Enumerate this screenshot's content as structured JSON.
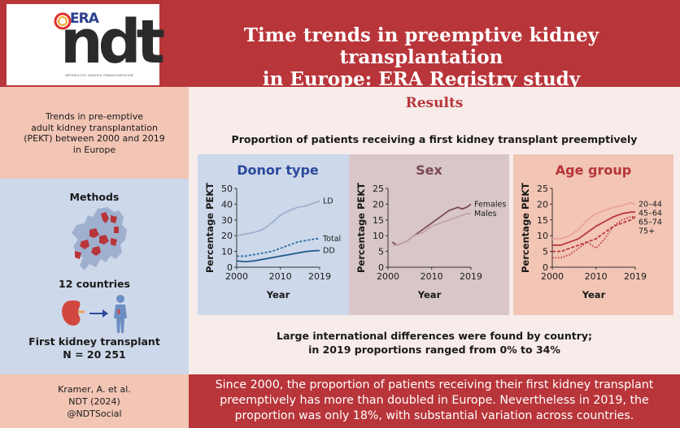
{
  "header": {
    "logo_era": "ERA",
    "logo_ndt": "ndt",
    "logo_sub": "NEPHROLOGY DIALYSIS TRANSPLANTATION",
    "title_line1": "Time trends in preemptive kidney transplantation",
    "title_line2": "in Europe: ERA Registry study"
  },
  "left": {
    "trends_lines": [
      "Trends in pre-emptive",
      "adult kidney transplantation",
      "(PEKT) between 2000 and 2019",
      "in Europe"
    ],
    "methods": "Methods",
    "countries": "12 countries",
    "first_transplant": "First kidney transplant",
    "n": "N = 20 251",
    "map_icon": "europe-map-icon",
    "kidney_icon": "kidney-icon",
    "arrow_icon": "arrow-right-icon",
    "person_icon": "person-icon"
  },
  "results": {
    "title": "Results",
    "subtitle": "Proportion of patients receiving a first kidney transplant preemptively",
    "finding_line1": "Large international differences were found by country;",
    "finding_line2": "in 2019 proportions ranged from 0% to 34%"
  },
  "footer": {
    "cite_author": "Kramer, A. et al.",
    "cite_journal": "NDT (2024)",
    "cite_social": "@NDTSocial",
    "summary_lines": [
      "Since 2000, the proportion of patients receiving their first kidney transplant",
      "preemptively has more than doubled in Europe. Nevertheless in 2019, the",
      "proportion was only 18%, with substantial variation across countries."
    ]
  },
  "colors": {
    "brand_red": "#b8353a",
    "panel_blue": "#cdd8ea",
    "panel_mauve": "#d8c6c8",
    "panel_peach": "#f2c5b5"
  },
  "chart_data": [
    {
      "type": "line",
      "title": "Donor type",
      "title_color": "#2a4a9a",
      "xlabel": "Year",
      "ylabel": "Percentage PEKT",
      "xlim": [
        2000,
        2019
      ],
      "ylim": [
        0,
        50
      ],
      "xticks": [
        2000,
        2010,
        2019
      ],
      "yticks": [
        0,
        10,
        20,
        30,
        40,
        50
      ],
      "series": [
        {
          "name": "LD",
          "color": "#9fb0cf",
          "dash": "",
          "x": [
            2000,
            2002,
            2004,
            2006,
            2008,
            2010,
            2012,
            2014,
            2016,
            2018,
            2019
          ],
          "y": [
            20,
            21,
            22,
            24,
            28,
            33,
            36,
            38,
            39,
            41,
            42
          ]
        },
        {
          "name": "Total",
          "color": "#2f6ea8",
          "dash": "3,2",
          "x": [
            2000,
            2002,
            2004,
            2006,
            2008,
            2010,
            2012,
            2014,
            2016,
            2018,
            2019
          ],
          "y": [
            7,
            7,
            8,
            9,
            10,
            12,
            14,
            16,
            17,
            18,
            18
          ]
        },
        {
          "name": "DD",
          "color": "#1e5a8a",
          "dash": "",
          "x": [
            2000,
            2002,
            2004,
            2006,
            2008,
            2010,
            2012,
            2014,
            2016,
            2018,
            2019
          ],
          "y": [
            4,
            3.5,
            4,
            5,
            6,
            7,
            8,
            9,
            10,
            10.5,
            10.5
          ]
        }
      ]
    },
    {
      "type": "line",
      "title": "Sex",
      "title_color": "#7a4a55",
      "xlabel": "Year",
      "ylabel": "Percentage PEKT",
      "xlim": [
        2000,
        2019
      ],
      "ylim": [
        0,
        25
      ],
      "xticks": [
        2000,
        2010,
        2019
      ],
      "yticks": [
        0,
        5,
        10,
        15,
        20,
        25
      ],
      "series": [
        {
          "name": "Females",
          "color": "#7a4a55",
          "dash": "",
          "x": [
            2001,
            2002,
            2004,
            2006,
            2008,
            2010,
            2012,
            2014,
            2016,
            2017,
            2018,
            2019
          ],
          "y": [
            8,
            7,
            8,
            10,
            12,
            14,
            16,
            18,
            19,
            18.5,
            19,
            20
          ]
        },
        {
          "name": "Males",
          "color": "#c3a4ab",
          "dash": "",
          "x": [
            2001,
            2002,
            2004,
            2006,
            2008,
            2010,
            2012,
            2014,
            2016,
            2017,
            2018,
            2019
          ],
          "y": [
            7,
            7,
            8,
            10,
            11,
            13,
            14,
            15,
            16,
            16.5,
            17,
            17
          ]
        }
      ]
    },
    {
      "type": "line",
      "title": "Age group",
      "title_color": "#b8353a",
      "xlabel": "Year",
      "ylabel": "Percentage PEKT",
      "xlim": [
        2000,
        2019
      ],
      "ylim": [
        0,
        25
      ],
      "xticks": [
        2000,
        2010,
        2019
      ],
      "yticks": [
        0,
        5,
        10,
        15,
        20,
        25
      ],
      "series": [
        {
          "name": "20–44",
          "color": "#e8a3a0",
          "dash": "",
          "x": [
            2000,
            2002,
            2004,
            2006,
            2008,
            2010,
            2012,
            2014,
            2016,
            2018,
            2019
          ],
          "y": [
            9,
            9,
            10,
            12,
            15,
            17,
            18,
            19,
            19.5,
            20.5,
            20
          ]
        },
        {
          "name": "45–64",
          "color": "#b8353a",
          "dash": "",
          "x": [
            2000,
            2002,
            2004,
            2006,
            2008,
            2010,
            2012,
            2014,
            2016,
            2018,
            2019
          ],
          "y": [
            7,
            7,
            8,
            9,
            11,
            13,
            14.5,
            16,
            17,
            17.5,
            17.5
          ]
        },
        {
          "name": "65–74",
          "color": "#b8353a",
          "dash": "4,2",
          "x": [
            2000,
            2002,
            2004,
            2006,
            2008,
            2010,
            2012,
            2014,
            2016,
            2018,
            2019
          ],
          "y": [
            5,
            5,
            6,
            7,
            8,
            9,
            11,
            13,
            14,
            15,
            16
          ]
        },
        {
          "name": "75+",
          "color": "#b8353a",
          "dash": "1.5,2",
          "x": [
            2000,
            2002,
            2004,
            2006,
            2008,
            2010,
            2012,
            2014,
            2016,
            2018,
            2019
          ],
          "y": [
            3,
            3,
            4,
            6,
            8,
            6,
            9,
            13,
            15,
            16,
            16
          ]
        }
      ]
    }
  ]
}
